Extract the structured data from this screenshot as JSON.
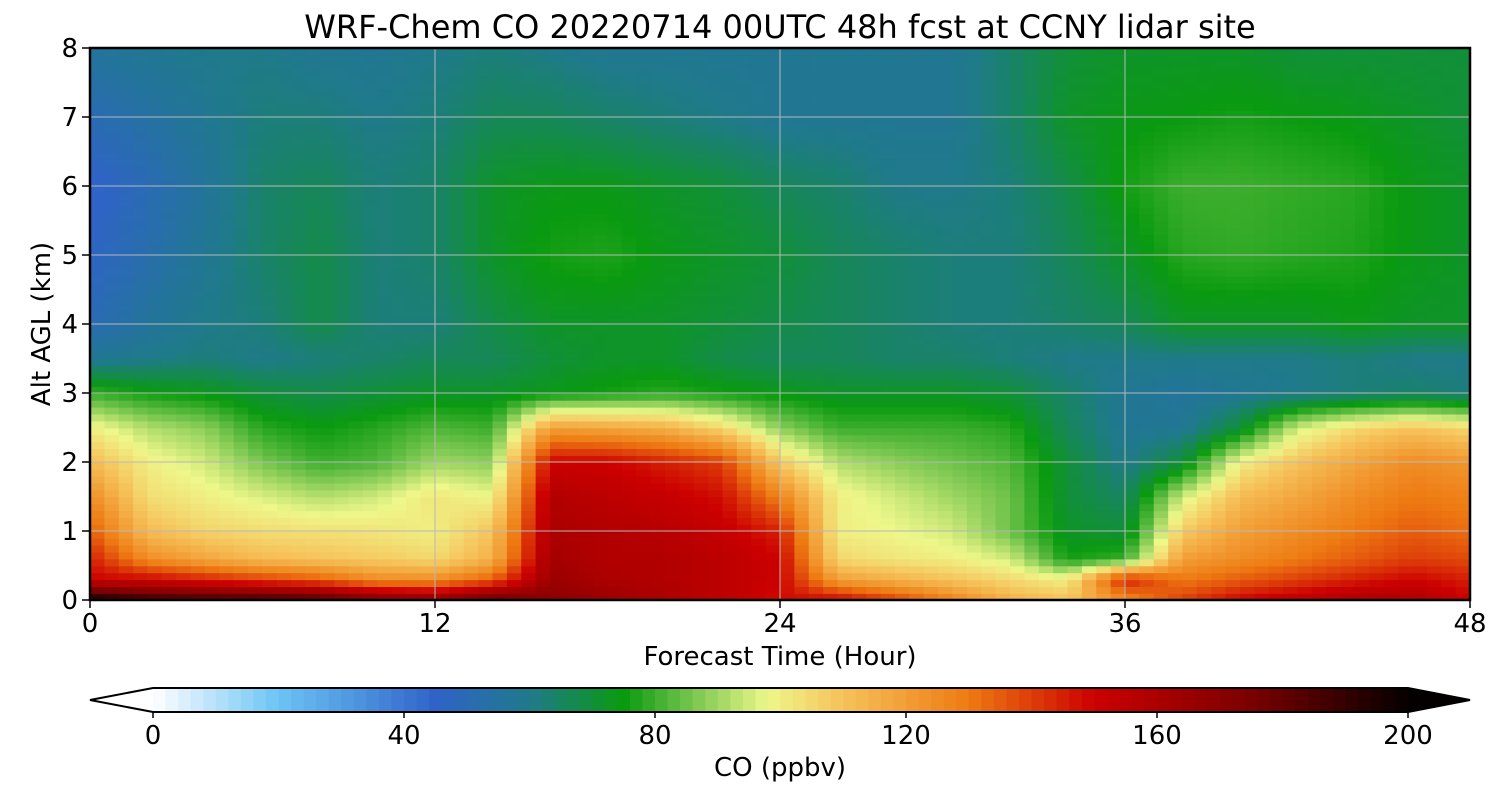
{
  "chart_data": {
    "type": "heatmap",
    "title": "WRF-Chem CO  20220714 00UTC 48h fcst at CCNY lidar site",
    "xlabel": "Forecast Time (Hour)",
    "ylabel": "Alt AGL (km)",
    "xlim": [
      0,
      48
    ],
    "ylim": [
      0,
      8
    ],
    "xticks": [
      0,
      12,
      24,
      36,
      48
    ],
    "yticks": [
      0,
      1,
      2,
      3,
      4,
      5,
      6,
      7,
      8
    ],
    "grid": true,
    "colorbar": {
      "label": "CO  (ppbv)",
      "min": 0,
      "max": 200,
      "ticks": [
        0,
        40,
        80,
        120,
        160,
        200
      ],
      "extend": "both",
      "stops": [
        {
          "v": 0,
          "c": "#ffffff"
        },
        {
          "v": 20,
          "c": "#6cc4f4"
        },
        {
          "v": 45,
          "c": "#2f63c8"
        },
        {
          "v": 60,
          "c": "#1f7a8a"
        },
        {
          "v": 75,
          "c": "#0a9a10"
        },
        {
          "v": 85,
          "c": "#6ec24a"
        },
        {
          "v": 98,
          "c": "#eef78a"
        },
        {
          "v": 110,
          "c": "#f6c25a"
        },
        {
          "v": 130,
          "c": "#ee7a12"
        },
        {
          "v": 150,
          "c": "#cc0000"
        },
        {
          "v": 175,
          "c": "#7a0000"
        },
        {
          "v": 200,
          "c": "#050000"
        }
      ]
    },
    "x": [
      0,
      2,
      4,
      6,
      8,
      10,
      12,
      14,
      16,
      18,
      20,
      22,
      24,
      26,
      28,
      30,
      32,
      34,
      36,
      38,
      40,
      42,
      44,
      46,
      48
    ],
    "y": [
      0,
      0.3,
      0.6,
      1,
      1.5,
      2,
      2.5,
      3,
      3.5,
      4,
      5,
      6,
      7,
      8
    ],
    "values": [
      [
        200,
        190,
        188,
        188,
        185,
        175,
        170,
        182,
        170,
        165,
        160,
        155,
        148,
        150,
        140,
        128,
        115,
        110,
        125,
        140,
        150,
        155,
        160,
        160,
        150
      ],
      [
        150,
        150,
        145,
        140,
        135,
        125,
        125,
        135,
        165,
        160,
        158,
        155,
        150,
        120,
        115,
        110,
        105,
        100,
        145,
        130,
        135,
        140,
        145,
        150,
        145
      ],
      [
        145,
        125,
        118,
        112,
        110,
        108,
        105,
        115,
        162,
        158,
        158,
        155,
        150,
        105,
        102,
        100,
        95,
        76,
        80,
        120,
        125,
        130,
        135,
        140,
        138
      ],
      [
        135,
        112,
        106,
        104,
        103,
        102,
        100,
        110,
        160,
        158,
        156,
        152,
        145,
        100,
        98,
        95,
        85,
        72,
        70,
        108,
        120,
        125,
        130,
        135,
        132
      ],
      [
        125,
        104,
        100,
        96,
        92,
        95,
        102,
        98,
        158,
        155,
        152,
        148,
        128,
        100,
        95,
        90,
        85,
        70,
        65,
        95,
        112,
        118,
        125,
        130,
        128
      ],
      [
        112,
        100,
        95,
        86,
        80,
        82,
        90,
        88,
        150,
        150,
        145,
        140,
        108,
        92,
        88,
        85,
        82,
        70,
        60,
        70,
        100,
        110,
        118,
        125,
        122
      ],
      [
        100,
        92,
        88,
        78,
        75,
        78,
        82,
        80,
        120,
        118,
        115,
        105,
        88,
        80,
        80,
        80,
        78,
        66,
        58,
        58,
        70,
        95,
        105,
        110,
        105
      ],
      [
        80,
        76,
        74,
        70,
        68,
        70,
        72,
        72,
        74,
        76,
        78,
        76,
        74,
        72,
        72,
        72,
        70,
        64,
        58,
        56,
        58,
        60,
        62,
        64,
        62
      ],
      [
        58,
        60,
        62,
        60,
        62,
        64,
        66,
        66,
        70,
        72,
        72,
        68,
        66,
        66,
        64,
        64,
        62,
        60,
        60,
        60,
        60,
        60,
        62,
        60,
        60
      ],
      [
        50,
        56,
        60,
        62,
        68,
        62,
        62,
        68,
        72,
        72,
        72,
        70,
        68,
        66,
        64,
        62,
        62,
        64,
        66,
        72,
        72,
        72,
        74,
        72,
        72
      ],
      [
        46,
        52,
        58,
        64,
        68,
        62,
        64,
        72,
        76,
        77,
        74,
        72,
        70,
        66,
        64,
        62,
        62,
        66,
        72,
        78,
        79,
        78,
        77,
        74,
        72
      ],
      [
        44,
        50,
        56,
        64,
        66,
        62,
        64,
        72,
        74,
        74,
        72,
        70,
        66,
        64,
        60,
        60,
        62,
        68,
        76,
        80,
        80,
        79,
        78,
        74,
        72
      ],
      [
        50,
        54,
        58,
        62,
        62,
        60,
        62,
        66,
        66,
        64,
        62,
        60,
        58,
        58,
        58,
        58,
        64,
        72,
        74,
        75,
        76,
        75,
        74,
        72,
        70
      ],
      [
        56,
        58,
        60,
        60,
        58,
        58,
        60,
        62,
        60,
        58,
        58,
        58,
        58,
        58,
        58,
        58,
        64,
        70,
        72,
        72,
        72,
        70,
        70,
        70,
        70
      ]
    ]
  }
}
